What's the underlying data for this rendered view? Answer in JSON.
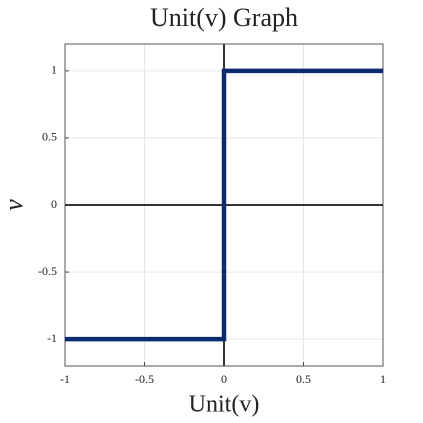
{
  "chart_data": {
    "type": "line",
    "title": "Unit(v) Graph",
    "xlabel": "Unit(v)",
    "ylabel": "v",
    "x": [
      -1,
      0,
      0,
      1
    ],
    "series": [
      {
        "color": "#0c2a6e",
        "values": [
          -1,
          -1,
          1,
          1
        ]
      }
    ],
    "xlim": [
      -1,
      1
    ],
    "ylim": [
      -1.2,
      1.2
    ],
    "xticks": [
      -1,
      -0.5,
      0,
      0.5,
      1
    ],
    "yticks": [
      -1,
      -0.5,
      0,
      0.5,
      1
    ],
    "grid": true,
    "zero_lines": true
  }
}
